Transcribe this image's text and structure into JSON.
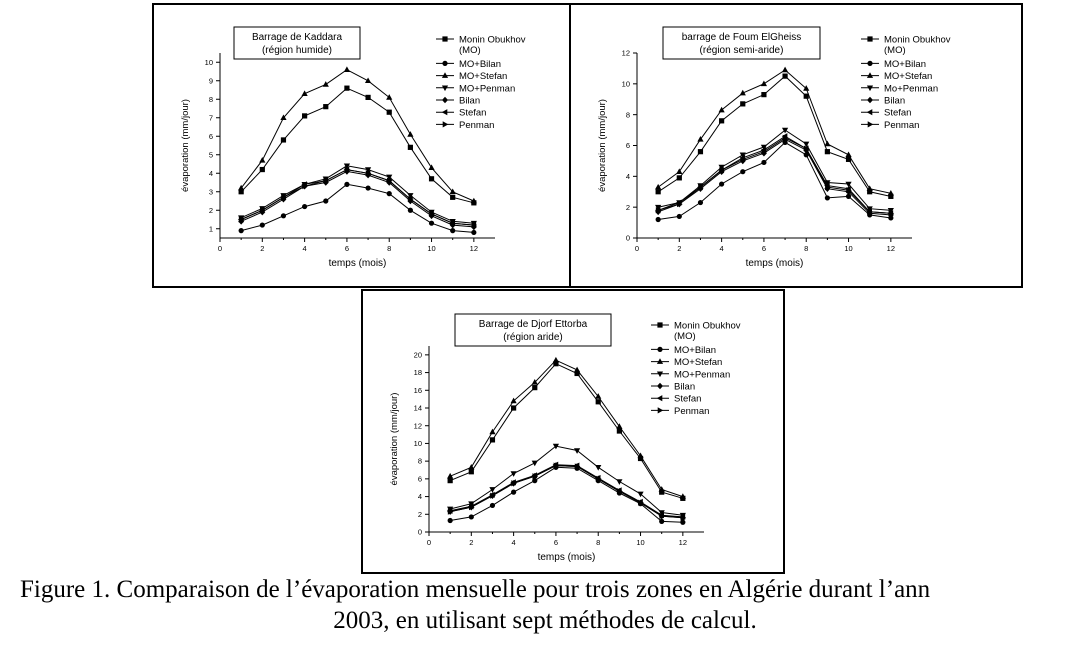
{
  "caption": {
    "line1": "Figure 1. Comparaison de l’évaporation mensuelle pour trois zones en Algérie durant l’ann",
    "line2": "2003, en utilisant sept méthodes de calcul."
  },
  "chart_data": [
    {
      "type": "line",
      "title": "Barrage de Kaddara",
      "subtitle": "(région humide)",
      "xlabel": "temps (mois)",
      "ylabel": "évaporation (mm/jour)",
      "xlim": [
        0,
        13
      ],
      "ylim": [
        0.5,
        10.5
      ],
      "xticks": [
        0,
        2,
        4,
        6,
        8,
        10,
        12
      ],
      "yticks": [
        1,
        2,
        3,
        4,
        5,
        6,
        7,
        8,
        9,
        10
      ],
      "legend_position": "right",
      "grid": false,
      "x": [
        1,
        2,
        3,
        4,
        5,
        6,
        7,
        8,
        9,
        10,
        11,
        12
      ],
      "series": [
        {
          "name": "Monin Obukhov",
          "name2": "(MO)",
          "marker": "square",
          "values": [
            3.0,
            4.2,
            5.8,
            7.1,
            7.6,
            8.6,
            8.1,
            7.3,
            5.4,
            3.7,
            2.7,
            2.4
          ]
        },
        {
          "name": "MO+Bilan",
          "marker": "circle",
          "values": [
            0.9,
            1.2,
            1.7,
            2.2,
            2.5,
            3.4,
            3.2,
            2.9,
            2.0,
            1.3,
            0.9,
            0.8
          ]
        },
        {
          "name": "MO+Stefan",
          "marker": "triangle-up",
          "values": [
            3.2,
            4.7,
            7.0,
            8.3,
            8.8,
            9.6,
            9.0,
            8.1,
            6.1,
            4.3,
            3.0,
            2.5
          ]
        },
        {
          "name": "MO+Penman",
          "marker": "triangle-down",
          "values": [
            1.6,
            2.1,
            2.8,
            3.4,
            3.7,
            4.4,
            4.2,
            3.8,
            2.8,
            1.9,
            1.4,
            1.3
          ]
        },
        {
          "name": "Bilan",
          "marker": "diamond",
          "values": [
            1.4,
            1.9,
            2.6,
            3.3,
            3.5,
            4.1,
            3.9,
            3.5,
            2.5,
            1.7,
            1.2,
            1.1
          ]
        },
        {
          "name": "Stefan",
          "marker": "triangle-left",
          "values": [
            1.5,
            2.0,
            2.7,
            3.4,
            3.6,
            4.2,
            4.0,
            3.6,
            2.6,
            1.8,
            1.3,
            1.2
          ]
        },
        {
          "name": "Penman",
          "marker": "triangle-right",
          "values": [
            1.5,
            2.0,
            2.7,
            3.3,
            3.6,
            4.2,
            4.0,
            3.6,
            2.6,
            1.8,
            1.3,
            1.2
          ]
        }
      ]
    },
    {
      "type": "line",
      "title": "barrage de Foum ElGheiss",
      "subtitle": "(région semi-aride)",
      "xlabel": "temps (mois)",
      "ylabel": "évaporation (mm/jour)",
      "xlim": [
        0,
        13
      ],
      "ylim": [
        0,
        12
      ],
      "xticks": [
        0,
        2,
        4,
        6,
        8,
        10,
        12
      ],
      "yticks": [
        0,
        2,
        4,
        6,
        8,
        10,
        12
      ],
      "legend_position": "right",
      "grid": false,
      "x": [
        1,
        2,
        3,
        4,
        5,
        6,
        7,
        8,
        9,
        10,
        11,
        12
      ],
      "series": [
        {
          "name": "Monin Obukhov",
          "name2": "(MO)",
          "marker": "square",
          "values": [
            3.0,
            3.9,
            5.6,
            7.6,
            8.7,
            9.3,
            10.5,
            9.2,
            5.6,
            5.1,
            3.0,
            2.7
          ]
        },
        {
          "name": "MO+Bilan",
          "marker": "circle",
          "values": [
            1.2,
            1.4,
            2.3,
            3.5,
            4.3,
            4.9,
            6.2,
            5.4,
            2.6,
            2.7,
            1.5,
            1.3
          ]
        },
        {
          "name": "MO+Stefan",
          "marker": "triangle-up",
          "values": [
            3.3,
            4.3,
            6.4,
            8.3,
            9.4,
            10.0,
            10.9,
            9.7,
            6.1,
            5.4,
            3.2,
            2.9
          ]
        },
        {
          "name": "Mo+Penman",
          "marker": "triangle-down",
          "values": [
            2.0,
            2.3,
            3.4,
            4.6,
            5.4,
            5.9,
            7.0,
            6.1,
            3.6,
            3.5,
            1.9,
            1.8
          ]
        },
        {
          "name": "Bilan",
          "marker": "diamond",
          "values": [
            1.7,
            2.2,
            3.2,
            4.3,
            5.0,
            5.5,
            6.4,
            5.7,
            3.2,
            3.0,
            1.6,
            1.5
          ]
        },
        {
          "name": "Stefan",
          "marker": "triangle-left",
          "values": [
            1.8,
            2.3,
            3.3,
            4.4,
            5.2,
            5.7,
            6.6,
            5.8,
            3.4,
            3.2,
            1.7,
            1.6
          ]
        },
        {
          "name": "Penman",
          "marker": "triangle-right",
          "values": [
            1.8,
            2.2,
            3.3,
            4.4,
            5.1,
            5.6,
            6.5,
            5.8,
            3.3,
            3.1,
            1.7,
            1.6
          ]
        }
      ]
    },
    {
      "type": "line",
      "title": "Barrage de Djorf Ettorba",
      "subtitle": "(région aride)",
      "xlabel": "temps (mois)",
      "ylabel": "évaporation (mm/jour)",
      "xlim": [
        0,
        13
      ],
      "ylim": [
        0,
        21
      ],
      "xticks": [
        0,
        2,
        4,
        6,
        8,
        10,
        12
      ],
      "yticks": [
        0,
        2,
        4,
        6,
        8,
        10,
        12,
        14,
        16,
        18,
        20
      ],
      "legend_position": "right",
      "grid": false,
      "x": [
        1,
        2,
        3,
        4,
        5,
        6,
        7,
        8,
        9,
        10,
        11,
        12
      ],
      "series": [
        {
          "name": "Monin Obukhov",
          "name2": "(MO)",
          "marker": "square",
          "values": [
            5.8,
            6.8,
            10.4,
            14.0,
            16.3,
            19.0,
            17.9,
            14.7,
            11.4,
            8.3,
            4.5,
            3.8
          ]
        },
        {
          "name": "MO+Bilan",
          "marker": "circle",
          "values": [
            1.3,
            1.7,
            3.0,
            4.5,
            5.8,
            7.3,
            7.2,
            5.8,
            4.4,
            3.2,
            1.2,
            1.1
          ]
        },
        {
          "name": "MO+Stefan",
          "marker": "triangle-up",
          "values": [
            6.3,
            7.3,
            11.3,
            14.8,
            16.9,
            19.4,
            18.3,
            15.3,
            11.9,
            8.6,
            4.8,
            4.0
          ]
        },
        {
          "name": "MO+Penman",
          "marker": "triangle-down",
          "values": [
            2.6,
            3.2,
            4.8,
            6.6,
            7.8,
            9.7,
            9.2,
            7.3,
            5.7,
            4.3,
            2.2,
            1.9
          ]
        },
        {
          "name": "Bilan",
          "marker": "diamond",
          "values": [
            2.3,
            2.8,
            4.1,
            5.5,
            6.3,
            7.5,
            7.4,
            6.0,
            4.6,
            3.3,
            1.8,
            1.6
          ]
        },
        {
          "name": "Stefan",
          "marker": "triangle-left",
          "values": [
            2.4,
            2.9,
            4.2,
            5.6,
            6.4,
            7.6,
            7.5,
            6.1,
            4.7,
            3.4,
            1.9,
            1.7
          ]
        },
        {
          "name": "Penman",
          "marker": "triangle-right",
          "values": [
            2.3,
            2.8,
            4.1,
            5.5,
            6.3,
            7.5,
            7.4,
            6.0,
            4.6,
            3.3,
            1.8,
            1.6
          ]
        }
      ]
    }
  ]
}
